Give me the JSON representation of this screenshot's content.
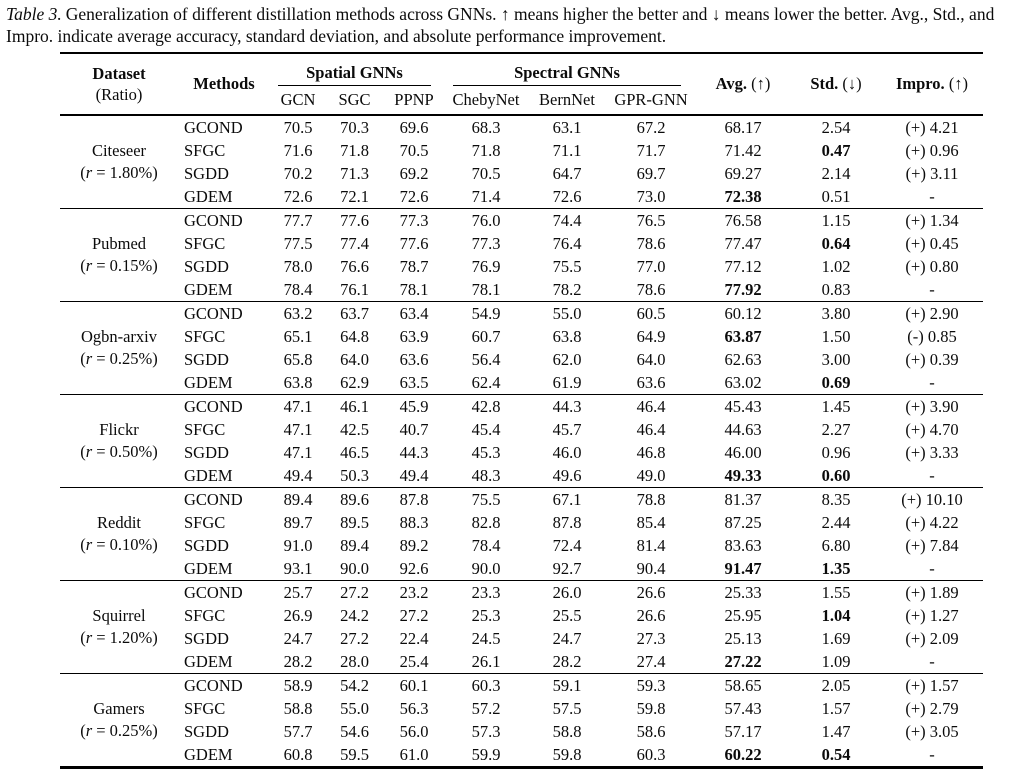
{
  "caption": {
    "label": "Table 3.",
    "text": "Generalization of different distillation methods across GNNs. ↑ means higher the better and ↓ means lower the better. Avg., Std., and Impro. indicate average accuracy, standard deviation, and absolute performance improvement."
  },
  "header": {
    "dataset_line1": "Dataset",
    "dataset_line2": "(Ratio)",
    "methods": "Methods",
    "spatial_group": "Spatial GNNs",
    "spectral_group": "Spectral GNNs",
    "model_cols": [
      "GCN",
      "SGC",
      "PPNP",
      "ChebyNet",
      "BernNet",
      "GPR-GNN"
    ],
    "avg_label": "Avg.",
    "avg_arrow": "(↑)",
    "std_label": "Std.",
    "std_arrow": "(↓)",
    "impro_label": "Impro.",
    "impro_arrow": "(↑)"
  },
  "groups": [
    {
      "dataset": "Citeseer",
      "ratio_open": "(",
      "ratio_var": "r",
      "ratio_rest": " = 1.80%)",
      "rows": [
        {
          "method": "GCOND",
          "values": [
            "70.5",
            "70.3",
            "69.6",
            "68.3",
            "63.1",
            "67.2"
          ],
          "avg": "68.17",
          "std": "2.54",
          "impro": "(+) 4.21",
          "avg_bold": false,
          "std_bold": false
        },
        {
          "method": "SFGC",
          "values": [
            "71.6",
            "71.8",
            "70.5",
            "71.8",
            "71.1",
            "71.7"
          ],
          "avg": "71.42",
          "std": "0.47",
          "impro": "(+) 0.96",
          "avg_bold": false,
          "std_bold": true
        },
        {
          "method": "SGDD",
          "values": [
            "70.2",
            "71.3",
            "69.2",
            "70.5",
            "64.7",
            "69.7"
          ],
          "avg": "69.27",
          "std": "2.14",
          "impro": "(+) 3.11",
          "avg_bold": false,
          "std_bold": false
        },
        {
          "method": "GDEM",
          "values": [
            "72.6",
            "72.1",
            "72.6",
            "71.4",
            "72.6",
            "73.0"
          ],
          "avg": "72.38",
          "std": "0.51",
          "impro": "-",
          "avg_bold": true,
          "std_bold": false
        }
      ]
    },
    {
      "dataset": "Pubmed",
      "ratio_open": "(",
      "ratio_var": "r",
      "ratio_rest": " = 0.15%)",
      "rows": [
        {
          "method": "GCOND",
          "values": [
            "77.7",
            "77.6",
            "77.3",
            "76.0",
            "74.4",
            "76.5"
          ],
          "avg": "76.58",
          "std": "1.15",
          "impro": "(+) 1.34",
          "avg_bold": false,
          "std_bold": false
        },
        {
          "method": "SFGC",
          "values": [
            "77.5",
            "77.4",
            "77.6",
            "77.3",
            "76.4",
            "78.6"
          ],
          "avg": "77.47",
          "std": "0.64",
          "impro": "(+) 0.45",
          "avg_bold": false,
          "std_bold": true
        },
        {
          "method": "SGDD",
          "values": [
            "78.0",
            "76.6",
            "78.7",
            "76.9",
            "75.5",
            "77.0"
          ],
          "avg": "77.12",
          "std": "1.02",
          "impro": "(+) 0.80",
          "avg_bold": false,
          "std_bold": false
        },
        {
          "method": "GDEM",
          "values": [
            "78.4",
            "76.1",
            "78.1",
            "78.1",
            "78.2",
            "78.6"
          ],
          "avg": "77.92",
          "std": "0.83",
          "impro": "-",
          "avg_bold": true,
          "std_bold": false
        }
      ]
    },
    {
      "dataset": "Ogbn-arxiv",
      "ratio_open": "(",
      "ratio_var": "r",
      "ratio_rest": " = 0.25%)",
      "rows": [
        {
          "method": "GCOND",
          "values": [
            "63.2",
            "63.7",
            "63.4",
            "54.9",
            "55.0",
            "60.5"
          ],
          "avg": "60.12",
          "std": "3.80",
          "impro": "(+) 2.90",
          "avg_bold": false,
          "std_bold": false
        },
        {
          "method": "SFGC",
          "values": [
            "65.1",
            "64.8",
            "63.9",
            "60.7",
            "63.8",
            "64.9"
          ],
          "avg": "63.87",
          "std": "1.50",
          "impro": "(-) 0.85",
          "avg_bold": true,
          "std_bold": false
        },
        {
          "method": "SGDD",
          "values": [
            "65.8",
            "64.0",
            "63.6",
            "56.4",
            "62.0",
            "64.0"
          ],
          "avg": "62.63",
          "std": "3.00",
          "impro": "(+) 0.39",
          "avg_bold": false,
          "std_bold": false
        },
        {
          "method": "GDEM",
          "values": [
            "63.8",
            "62.9",
            "63.5",
            "62.4",
            "61.9",
            "63.6"
          ],
          "avg": "63.02",
          "std": "0.69",
          "impro": "-",
          "avg_bold": false,
          "std_bold": true
        }
      ]
    },
    {
      "dataset": "Flickr",
      "ratio_open": "(",
      "ratio_var": "r",
      "ratio_rest": " = 0.50%)",
      "rows": [
        {
          "method": "GCOND",
          "values": [
            "47.1",
            "46.1",
            "45.9",
            "42.8",
            "44.3",
            "46.4"
          ],
          "avg": "45.43",
          "std": "1.45",
          "impro": "(+) 3.90",
          "avg_bold": false,
          "std_bold": false
        },
        {
          "method": "SFGC",
          "values": [
            "47.1",
            "42.5",
            "40.7",
            "45.4",
            "45.7",
            "46.4"
          ],
          "avg": "44.63",
          "std": "2.27",
          "impro": "(+) 4.70",
          "avg_bold": false,
          "std_bold": false
        },
        {
          "method": "SGDD",
          "values": [
            "47.1",
            "46.5",
            "44.3",
            "45.3",
            "46.0",
            "46.8"
          ],
          "avg": "46.00",
          "std": "0.96",
          "impro": "(+) 3.33",
          "avg_bold": false,
          "std_bold": false
        },
        {
          "method": "GDEM",
          "values": [
            "49.4",
            "50.3",
            "49.4",
            "48.3",
            "49.6",
            "49.0"
          ],
          "avg": "49.33",
          "std": "0.60",
          "impro": "-",
          "avg_bold": true,
          "std_bold": true
        }
      ]
    },
    {
      "dataset": "Reddit",
      "ratio_open": "(",
      "ratio_var": "r",
      "ratio_rest": " = 0.10%)",
      "rows": [
        {
          "method": "GCOND",
          "values": [
            "89.4",
            "89.6",
            "87.8",
            "75.5",
            "67.1",
            "78.8"
          ],
          "avg": "81.37",
          "std": "8.35",
          "impro": "(+) 10.10",
          "avg_bold": false,
          "std_bold": false
        },
        {
          "method": "SFGC",
          "values": [
            "89.7",
            "89.5",
            "88.3",
            "82.8",
            "87.8",
            "85.4"
          ],
          "avg": "87.25",
          "std": "2.44",
          "impro": "(+) 4.22",
          "avg_bold": false,
          "std_bold": false
        },
        {
          "method": "SGDD",
          "values": [
            "91.0",
            "89.4",
            "89.2",
            "78.4",
            "72.4",
            "81.4"
          ],
          "avg": "83.63",
          "std": "6.80",
          "impro": "(+) 7.84",
          "avg_bold": false,
          "std_bold": false
        },
        {
          "method": "GDEM",
          "values": [
            "93.1",
            "90.0",
            "92.6",
            "90.0",
            "92.7",
            "90.4"
          ],
          "avg": "91.47",
          "std": "1.35",
          "impro": "-",
          "avg_bold": true,
          "std_bold": true
        }
      ]
    },
    {
      "dataset": "Squirrel",
      "ratio_open": "(",
      "ratio_var": "r",
      "ratio_rest": " = 1.20%)",
      "rows": [
        {
          "method": "GCOND",
          "values": [
            "25.7",
            "27.2",
            "23.2",
            "23.3",
            "26.0",
            "26.6"
          ],
          "avg": "25.33",
          "std": "1.55",
          "impro": "(+) 1.89",
          "avg_bold": false,
          "std_bold": false
        },
        {
          "method": "SFGC",
          "values": [
            "26.9",
            "24.2",
            "27.2",
            "25.3",
            "25.5",
            "26.6"
          ],
          "avg": "25.95",
          "std": "1.04",
          "impro": "(+) 1.27",
          "avg_bold": false,
          "std_bold": true
        },
        {
          "method": "SGDD",
          "values": [
            "24.7",
            "27.2",
            "22.4",
            "24.5",
            "24.7",
            "27.3"
          ],
          "avg": "25.13",
          "std": "1.69",
          "impro": "(+) 2.09",
          "avg_bold": false,
          "std_bold": false
        },
        {
          "method": "GDEM",
          "values": [
            "28.2",
            "28.0",
            "25.4",
            "26.1",
            "28.2",
            "27.4"
          ],
          "avg": "27.22",
          "std": "1.09",
          "impro": "-",
          "avg_bold": true,
          "std_bold": false
        }
      ]
    },
    {
      "dataset": "Gamers",
      "ratio_open": "(",
      "ratio_var": "r",
      "ratio_rest": " = 0.25%)",
      "rows": [
        {
          "method": "GCOND",
          "values": [
            "58.9",
            "54.2",
            "60.1",
            "60.3",
            "59.1",
            "59.3"
          ],
          "avg": "58.65",
          "std": "2.05",
          "impro": "(+) 1.57",
          "avg_bold": false,
          "std_bold": false
        },
        {
          "method": "SFGC",
          "values": [
            "58.8",
            "55.0",
            "56.3",
            "57.2",
            "57.5",
            "59.8"
          ],
          "avg": "57.43",
          "std": "1.57",
          "impro": "(+) 2.79",
          "avg_bold": false,
          "std_bold": false
        },
        {
          "method": "SGDD",
          "values": [
            "57.7",
            "54.6",
            "56.0",
            "57.3",
            "58.8",
            "58.6"
          ],
          "avg": "57.17",
          "std": "1.47",
          "impro": "(+) 3.05",
          "avg_bold": false,
          "std_bold": false
        },
        {
          "method": "GDEM",
          "values": [
            "60.8",
            "59.5",
            "61.0",
            "59.9",
            "59.8",
            "60.3"
          ],
          "avg": "60.22",
          "std": "0.54",
          "impro": "-",
          "avg_bold": true,
          "std_bold": true
        }
      ]
    }
  ]
}
